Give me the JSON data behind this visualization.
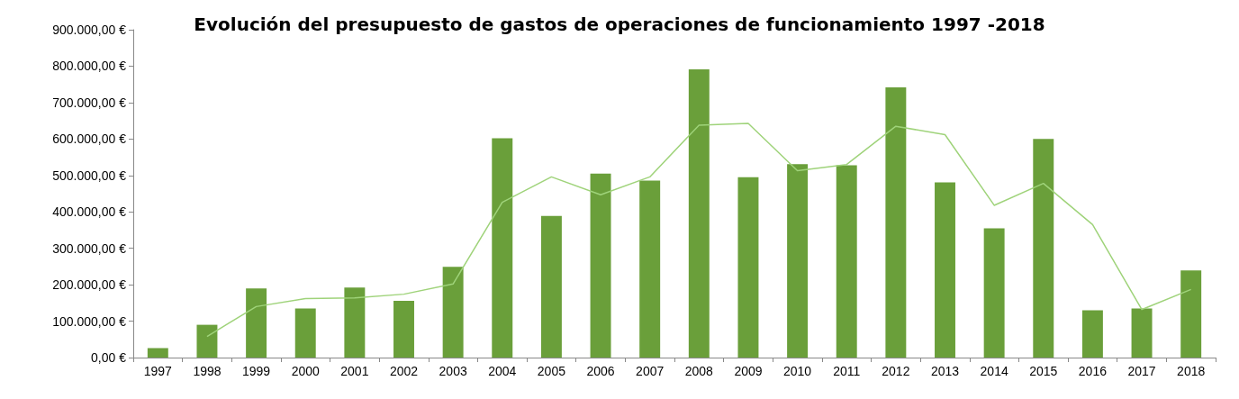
{
  "chart_data": {
    "type": "bar",
    "title": "Evolución del presupuesto de gastos de operaciones de funcionamiento 1997 -2018",
    "categories": [
      "1997",
      "1998",
      "1999",
      "2000",
      "2001",
      "2002",
      "2003",
      "2004",
      "2005",
      "2006",
      "2007",
      "2008",
      "2009",
      "2010",
      "2011",
      "2012",
      "2013",
      "2014",
      "2015",
      "2016",
      "2017",
      "2018"
    ],
    "series": [
      {
        "color": "#6a9f3a",
        "values": [
          26000,
          90000,
          190000,
          135000,
          192000,
          156000,
          249000,
          602000,
          389000,
          505000,
          486000,
          791000,
          495000,
          531000,
          528000,
          742000,
          481000,
          355000,
          600000,
          130000,
          135000,
          239000
        ]
      },
      {
        "type": "line",
        "color": "#9fd37a",
        "values": [
          null,
          58000,
          140000,
          162000,
          164000,
          174000,
          202000,
          426000,
          496000,
          447000,
          496000,
          638000,
          643000,
          513000,
          530000,
          635000,
          612000,
          418000,
          478000,
          365000,
          132000,
          187000
        ]
      }
    ],
    "ylim": [
      0,
      900000
    ],
    "yticks": [
      {
        "value": 0,
        "label": "0,00 €"
      },
      {
        "value": 100000,
        "label": "100.000,00 €"
      },
      {
        "value": 200000,
        "label": "200.000,00 €"
      },
      {
        "value": 300000,
        "label": "300.000,00 €"
      },
      {
        "value": 400000,
        "label": "400.000,00 €"
      },
      {
        "value": 500000,
        "label": "500.000,00 €"
      },
      {
        "value": 600000,
        "label": "600.000,00 €"
      },
      {
        "value": 700000,
        "label": "700.000,00 €"
      },
      {
        "value": 800000,
        "label": "800.000,00 €"
      },
      {
        "value": 900000,
        "label": "900.000,00 €"
      }
    ],
    "grid": false,
    "marker": "none"
  }
}
